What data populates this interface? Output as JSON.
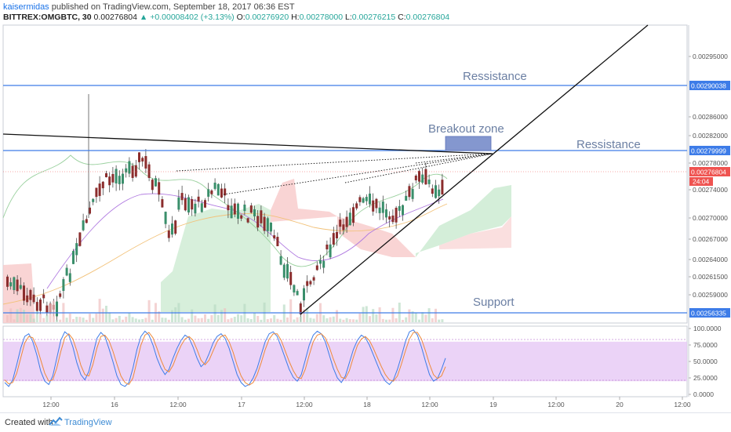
{
  "header": {
    "author": "kaisermidas",
    "published": "published on TradingView.com, September 18, 2017 06:36 EST",
    "symbol": "BITTREX:OMGBTC, 30",
    "last": "0.00276804",
    "change": "+0.00008402 (+3.13%)",
    "o_label": "O:",
    "o_value": "0.00276920",
    "h_label": "H:",
    "h_value": "0.00278000",
    "l_label": "L:",
    "l_value": "0.00276215",
    "c_label": "C:",
    "c_value": "0.00276804"
  },
  "footer": {
    "created": "Created with",
    "brand": "TradingView"
  },
  "colors": {
    "up": "#26a69a",
    "down": "#ef5350",
    "candle_body": "#3d3d3d",
    "hline": "#3d7ce8",
    "stoch_band": "#e6c8f5",
    "cloud_green": "#cdebd2",
    "cloud_red": "#f7c9c9"
  },
  "chart_data": {
    "type": "candlestick",
    "price_axis": {
      "ticks": [
        "0.00295000",
        "0.00286000",
        "0.00282000",
        "0.00278000",
        "0.00274000",
        "0.00270000",
        "0.00267000",
        "0.00264000",
        "0.00261500",
        "0.00259000"
      ],
      "last_price_label": "0.00276804",
      "countdown_label": "24:04"
    },
    "time_axis": {
      "ticks": [
        "12:00",
        "16",
        "12:00",
        "17",
        "12:00",
        "18",
        "12:00",
        "19",
        "12:00",
        "20",
        "12:00"
      ]
    },
    "horizontal_lines": [
      {
        "name": "resistance-upper",
        "value": 0.00290038,
        "label": "0.00290038"
      },
      {
        "name": "resistance-lower",
        "value": 0.00279999,
        "label": "0.00279999"
      },
      {
        "name": "support",
        "value": 0.00256335,
        "label": "0.00256335"
      }
    ],
    "annotations": {
      "resistance_upper": "Ressistance",
      "resistance_lower": "Ressistance",
      "breakout": "Breakout zone",
      "support": "Support"
    },
    "stochastic": {
      "ticks": [
        "100.0000",
        "75.0000",
        "50.0000",
        "25.0000",
        "0.0000"
      ],
      "band": [
        20,
        80
      ],
      "k": [
        18,
        12,
        22,
        45,
        70,
        88,
        92,
        80,
        60,
        35,
        20,
        15,
        28,
        55,
        82,
        95,
        90,
        72,
        48,
        30,
        22,
        35,
        60,
        85,
        94,
        88,
        70,
        50,
        28,
        15,
        12,
        18,
        40,
        68,
        88,
        96,
        90,
        75,
        55,
        40,
        30,
        38,
        55,
        70,
        82,
        90,
        86,
        72,
        55,
        42,
        48,
        62,
        78,
        88,
        92,
        85,
        70,
        50,
        30,
        18,
        12,
        15,
        25,
        40,
        60,
        80,
        92,
        95,
        88,
        72,
        55,
        38,
        26,
        20,
        30,
        52,
        75,
        90,
        96,
        92,
        80,
        60,
        40,
        25,
        18,
        28,
        48,
        68,
        82,
        90,
        86,
        75,
        60,
        45,
        30,
        20,
        15,
        22,
        38,
        58,
        80,
        95,
        98,
        90,
        72,
        50,
        30,
        20,
        24,
        38,
        55
      ],
      "d": [
        22,
        16,
        18,
        32,
        55,
        78,
        88,
        86,
        72,
        52,
        32,
        20,
        22,
        40,
        65,
        86,
        92,
        84,
        66,
        44,
        30,
        28,
        45,
        70,
        88,
        90,
        82,
        66,
        46,
        28,
        18,
        15,
        25,
        50,
        75,
        90,
        94,
        86,
        70,
        52,
        38,
        34,
        44,
        60,
        74,
        84,
        88,
        82,
        68,
        52,
        45,
        52,
        66,
        80,
        88,
        90,
        80,
        64,
        44,
        28,
        18,
        14,
        18,
        30,
        48,
        68,
        84,
        92,
        92,
        82,
        66,
        50,
        36,
        26,
        24,
        38,
        60,
        80,
        90,
        92,
        86,
        72,
        54,
        38,
        26,
        24,
        36,
        56,
        74,
        84,
        88,
        82,
        70,
        56,
        42,
        30,
        22,
        20,
        28,
        46,
        66,
        84,
        94,
        94,
        84,
        66,
        46,
        30,
        24,
        28,
        42
      ]
    }
  }
}
